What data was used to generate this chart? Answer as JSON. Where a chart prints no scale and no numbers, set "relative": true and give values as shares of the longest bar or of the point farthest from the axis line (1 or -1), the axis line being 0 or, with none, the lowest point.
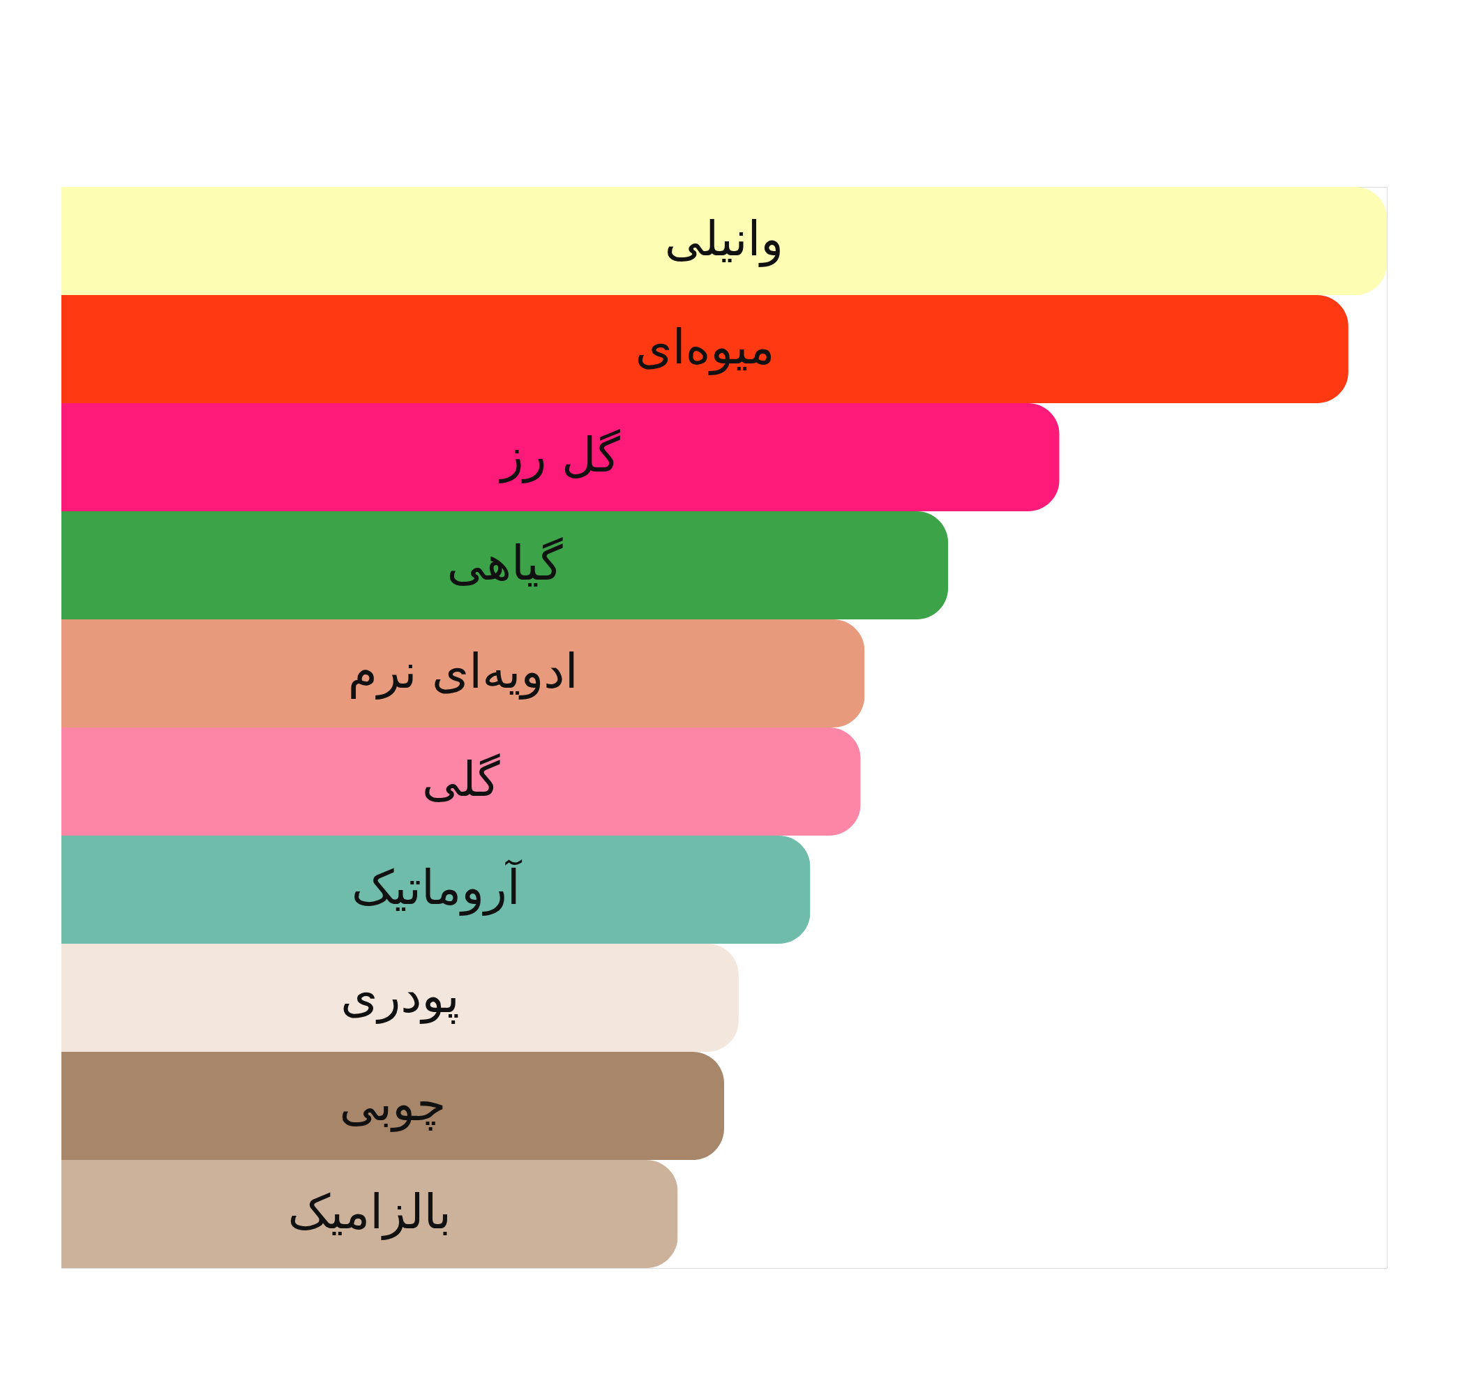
{
  "chart_data": {
    "type": "bar",
    "orientation": "horizontal",
    "relative": true,
    "categories": [
      "وانیلی",
      "میوه‌ای",
      "گل رز",
      "گیاهی",
      "ادویه‌ای نرم",
      "گلی",
      "آروماتیک",
      "پودری",
      "چوبی",
      "بالزامیک"
    ],
    "values": [
      1,
      0.971,
      0.753,
      0.669,
      0.606,
      0.603,
      0.565,
      0.511,
      0.5,
      0.465
    ],
    "colors": [
      "#fdfdb3",
      "#ff3912",
      "#fe1a78",
      "#3ca348",
      "#e89a7c",
      "#fd86a7",
      "#6fbcaa",
      "#f3e6dd",
      "#a8866a",
      "#ccb29a"
    ]
  }
}
